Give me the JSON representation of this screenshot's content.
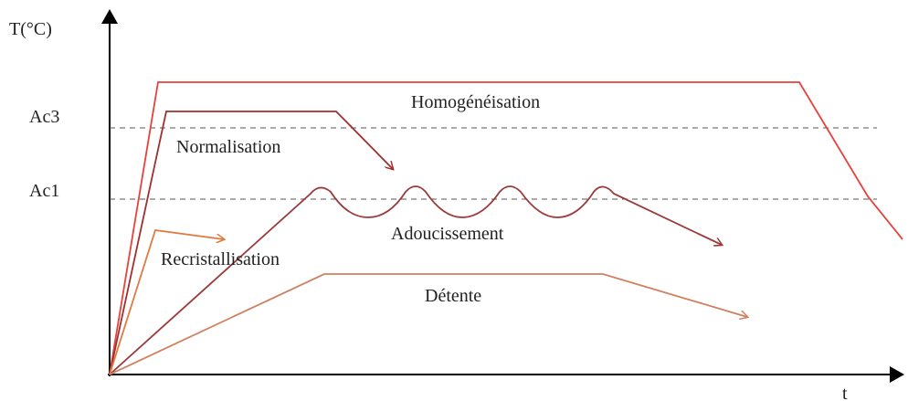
{
  "axes": {
    "y_label": "T(°C)",
    "x_label": "t"
  },
  "levels": [
    {
      "label": "Ac3"
    },
    {
      "label": "Ac1"
    }
  ],
  "curves": [
    {
      "label": "Homogénéisation"
    },
    {
      "label": "Normalisation"
    },
    {
      "label": "Adoucissement"
    },
    {
      "label": "Recristallisation"
    },
    {
      "label": "Détente"
    }
  ]
}
